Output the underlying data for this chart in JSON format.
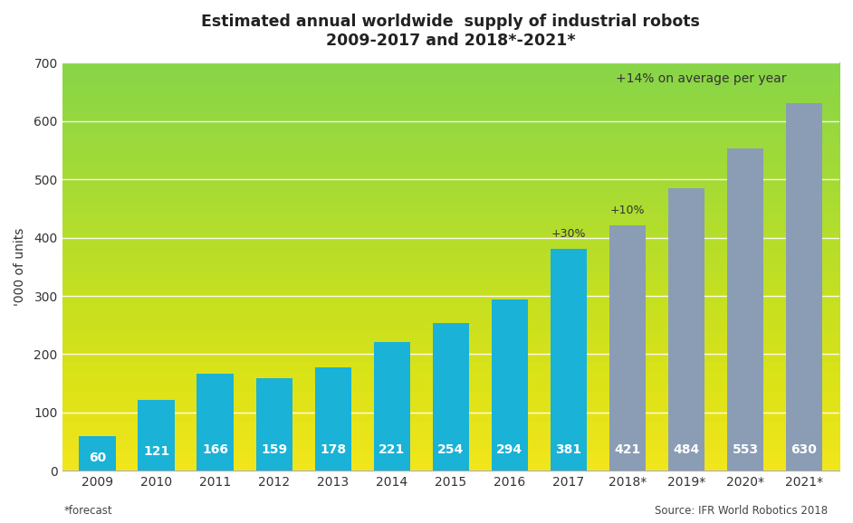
{
  "categories": [
    "2009",
    "2010",
    "2011",
    "2012",
    "2013",
    "2014",
    "2015",
    "2016",
    "2017",
    "2018*",
    "2019*",
    "2020*",
    "2021*"
  ],
  "values": [
    60,
    121,
    166,
    159,
    178,
    221,
    254,
    294,
    381,
    421,
    484,
    553,
    630
  ],
  "bar_color_actual": "#1ab2d6",
  "bar_color_forecast": "#8a9db5",
  "n_actual": 9,
  "title_line1": "Estimated annual worldwide  supply of industrial robots",
  "title_line2": "2009-2017 and 2018*-2021*",
  "ylabel": "'000 of units",
  "ylim": [
    0,
    700
  ],
  "yticks": [
    0,
    100,
    200,
    300,
    400,
    500,
    600,
    700
  ],
  "annotation_2017": "+30%",
  "annotation_2018": "+10%",
  "annotation_forecast": "+14% on average per year",
  "footnote": "*forecast",
  "source": "Source: IFR World Robotics 2018",
  "label_color": "#ffffff",
  "title_fontsize": 12.5,
  "label_fontsize": 10,
  "axis_fontsize": 10,
  "annot_fontsize": 9,
  "bg_top": "#cccccc",
  "bg_bottom": "#f8f8f8"
}
